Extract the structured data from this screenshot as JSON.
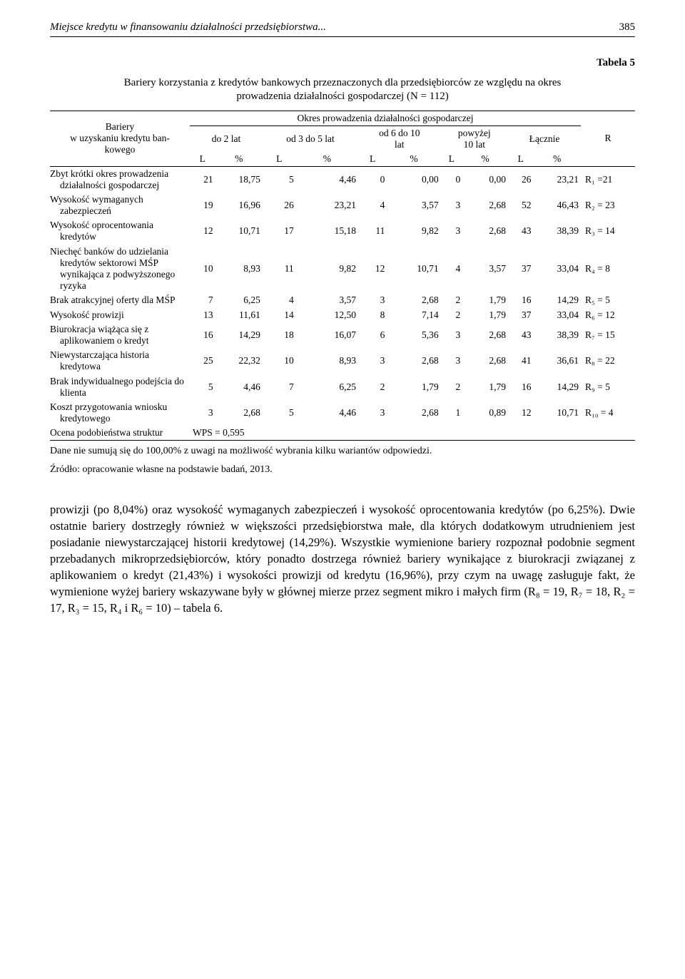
{
  "header": {
    "title": "Miejsce kredytu w finansowaniu działalności przedsiębiorstwa...",
    "page": "385"
  },
  "table": {
    "caption": "Tabela 5",
    "title": "Bariery korzystania z kredytów bankowych przeznaczonych dla przedsiębiorców ze względu na okres prowadzenia działalności gospodarczej (N = 112)",
    "header": {
      "col_label": "Bariery\nw uzyskaniu kredytu bankowego",
      "group_label": "Okres prowadzenia działalności gospodarczej",
      "groups": [
        "do 2 lat",
        "od 3 do 5 lat",
        "od 6 do 10 lat",
        "powyżej 10 lat",
        "Łącznie"
      ],
      "sub": [
        "L",
        "%",
        "L",
        "%",
        "L",
        "%",
        "L",
        "%",
        "L",
        "%"
      ],
      "r_col": "R"
    },
    "rows": [
      {
        "label": "Zbyt krótki okres prowadzenia działalności gospodarczej",
        "vals": [
          "21",
          "18,75",
          "5",
          "4,46",
          "0",
          "0,00",
          "0",
          "0,00",
          "26",
          "23,21"
        ],
        "r": "R₁ =21"
      },
      {
        "label": "Wysokość wymaganych zabezpieczeń",
        "vals": [
          "19",
          "16,96",
          "26",
          "23,21",
          "4",
          "3,57",
          "3",
          "2,68",
          "52",
          "46,43"
        ],
        "r": "R₂ = 23"
      },
      {
        "label": "Wysokość oprocentowania kredytów",
        "vals": [
          "12",
          "10,71",
          "17",
          "15,18",
          "11",
          "9,82",
          "3",
          "2,68",
          "43",
          "38,39"
        ],
        "r": "R₃ = 14"
      },
      {
        "label": "Niechęć banków do udzielania kredytów sektorowi MŚP wynikająca z podwyższonego ryzyka",
        "vals": [
          "10",
          "8,93",
          "11",
          "9,82",
          "12",
          "10,71",
          "4",
          "3,57",
          "37",
          "33,04"
        ],
        "r": "R₄ = 8"
      },
      {
        "label": "Brak atrakcyjnej oferty dla MŚP",
        "vals": [
          "7",
          "6,25",
          "4",
          "3,57",
          "3",
          "2,68",
          "2",
          "1,79",
          "16",
          "14,29"
        ],
        "r": "R₅ = 5"
      },
      {
        "label": "Wysokość prowizji",
        "vals": [
          "13",
          "11,61",
          "14",
          "12,50",
          "8",
          "7,14",
          "2",
          "1,79",
          "37",
          "33,04"
        ],
        "r": "R₆ = 12"
      },
      {
        "label": "Biurokracja wiążąca się z aplikowaniem o kredyt",
        "vals": [
          "16",
          "14,29",
          "18",
          "16,07",
          "6",
          "5,36",
          "3",
          "2,68",
          "43",
          "38,39"
        ],
        "r": "R₇ = 15"
      },
      {
        "label": "Niewystarczająca historia kredytowa",
        "vals": [
          "25",
          "22,32",
          "10",
          "8,93",
          "3",
          "2,68",
          "3",
          "2,68",
          "41",
          "36,61"
        ],
        "r": "R₈ = 22"
      },
      {
        "label": "Brak indywidualnego podejścia do klienta",
        "vals": [
          "5",
          "4,46",
          "7",
          "6,25",
          "2",
          "1,79",
          "2",
          "1,79",
          "16",
          "14,29"
        ],
        "r": "R₉ = 5"
      },
      {
        "label": "Koszt przygotowania wniosku kredytowego",
        "vals": [
          "3",
          "2,68",
          "5",
          "4,46",
          "3",
          "2,68",
          "1",
          "0,89",
          "12",
          "10,71"
        ],
        "r": "R₁₀ = 4"
      }
    ],
    "wps_row": {
      "label": "Ocena podobieństwa struktur",
      "value": "WPS = 0,595"
    },
    "footnote": "Dane nie sumują się do 100,00% z uwagi na możliwość wybrania kilku wariantów odpowiedzi.",
    "source": "Źródło: opracowanie własne na podstawie badań, 2013."
  },
  "paragraph": "prowizji (po 8,04%) oraz wysokość wymaganych zabezpieczeń i wysokość oprocentowania kredytów (po 6,25%). Dwie ostatnie bariery dostrzegły również w większości przedsiębiorstwa małe, dla których dodatkowym utrudnieniem jest posiadanie niewystarczającej historii kredytowej (14,29%). Wszystkie wymienione bariery rozpoznał podobnie segment przebadanych mikroprzedsiębiorców, który ponadto dostrzega również bariery wynikające z biurokracji związanej z aplikowaniem o kredyt (21,43%) i wysokości prowizji od kredytu (16,96%), przy czym na uwagę zasługuje fakt, że wymienione wyżej bariery wskazywane były w głównej mierze przez segment mikro i małych firm (R₈ = 19, R₇ = 18, R₂ = 17, R₃ = 15, R₄ i R₆ = 10) – tabela 6."
}
